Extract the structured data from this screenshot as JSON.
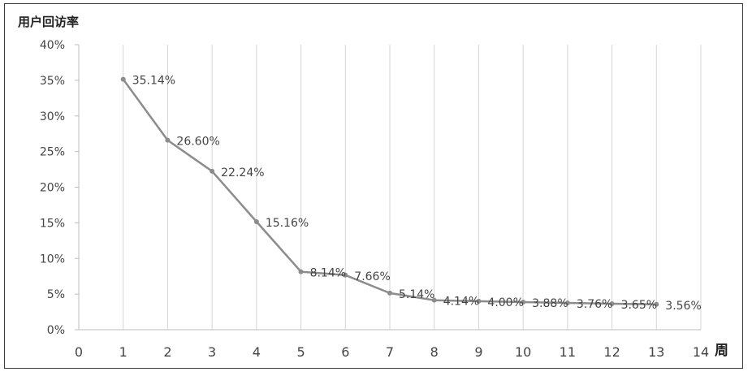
{
  "chart_data": {
    "type": "line",
    "ylabel": "用户回访率",
    "xlabel": "周",
    "xlim": [
      0,
      14
    ],
    "ylim": [
      0,
      40
    ],
    "x_ticks": [
      "0",
      "1",
      "2",
      "3",
      "4",
      "5",
      "6",
      "7",
      "8",
      "9",
      "10",
      "11",
      "12",
      "13",
      "14"
    ],
    "y_ticks": [
      "0%",
      "5%",
      "10%",
      "15%",
      "20%",
      "25%",
      "30%",
      "35%",
      "40%"
    ],
    "grid": "vertical",
    "colors": {
      "line": "#8c8c8c",
      "grid": "#d4d4d4",
      "axis": "#bdbdbd"
    },
    "series": [
      {
        "x": [
          1,
          2,
          3,
          4,
          5,
          6,
          7,
          8,
          9,
          10,
          11,
          12,
          13
        ],
        "values": [
          35.14,
          26.6,
          22.24,
          15.16,
          8.14,
          7.66,
          5.14,
          4.14,
          4.0,
          3.88,
          3.76,
          3.65,
          3.56
        ],
        "labels": [
          "35.14%",
          "26.60%",
          "22.24%",
          "15.16%",
          "8.14%",
          "7.66%",
          "5.14%",
          "4.14%",
          "4.00%",
          "3.88%",
          "3.76%",
          "3.65%",
          "3.56%"
        ]
      }
    ]
  }
}
